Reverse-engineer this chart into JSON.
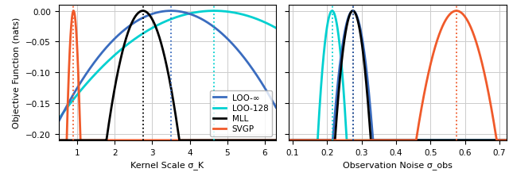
{
  "fig_width": 6.4,
  "fig_height": 2.28,
  "dpi": 100,
  "ylim": [
    -0.21,
    0.01
  ],
  "yticks": [
    0.0,
    -0.05,
    -0.1,
    -0.15,
    -0.2
  ],
  "ylabel": "Objective Function (nats)",
  "colors": {
    "loo_inf": "#3a6cbf",
    "loo_128": "#00d0d0",
    "mll": "#000000",
    "svgp": "#f05a2a"
  },
  "plot1": {
    "xlabel": "Kernel Scale σ_K",
    "xlim": [
      0.5,
      6.3
    ],
    "xticks": [
      1,
      2,
      3,
      4,
      5,
      6
    ],
    "curves": {
      "svgp": {
        "peak": 0.9,
        "sigma": 0.28
      },
      "mll": {
        "peak": 2.75,
        "sigma": 1.5
      },
      "loo_inf": {
        "peak": 3.5,
        "sigma": 5.0
      },
      "loo_128": {
        "peak": 4.65,
        "sigma": 7.0
      }
    },
    "vlines": {
      "mll": 2.75,
      "loo_inf": 3.5,
      "loo_128": 4.65,
      "svgp": 0.9
    }
  },
  "plot2": {
    "xlabel": "Observation Noise σ_obs",
    "xlim": [
      0.09,
      0.72
    ],
    "xticks": [
      0.1,
      0.2,
      0.3,
      0.4,
      0.5,
      0.6,
      0.7
    ],
    "curves": {
      "loo_128": {
        "peak": 0.215,
        "sigma": 0.065
      },
      "mll": {
        "peak": 0.275,
        "sigma": 0.08
      },
      "loo_inf": {
        "peak": 0.275,
        "sigma": 0.09
      },
      "svgp": {
        "peak": 0.575,
        "sigma": 0.18
      }
    },
    "vlines": {
      "mll": 0.275,
      "loo_inf": 0.275,
      "loo_128": 0.215,
      "svgp": 0.575
    }
  },
  "legend": {
    "entries": [
      "LOO-∞",
      "LOO-128",
      "MLL",
      "SVGP"
    ]
  }
}
